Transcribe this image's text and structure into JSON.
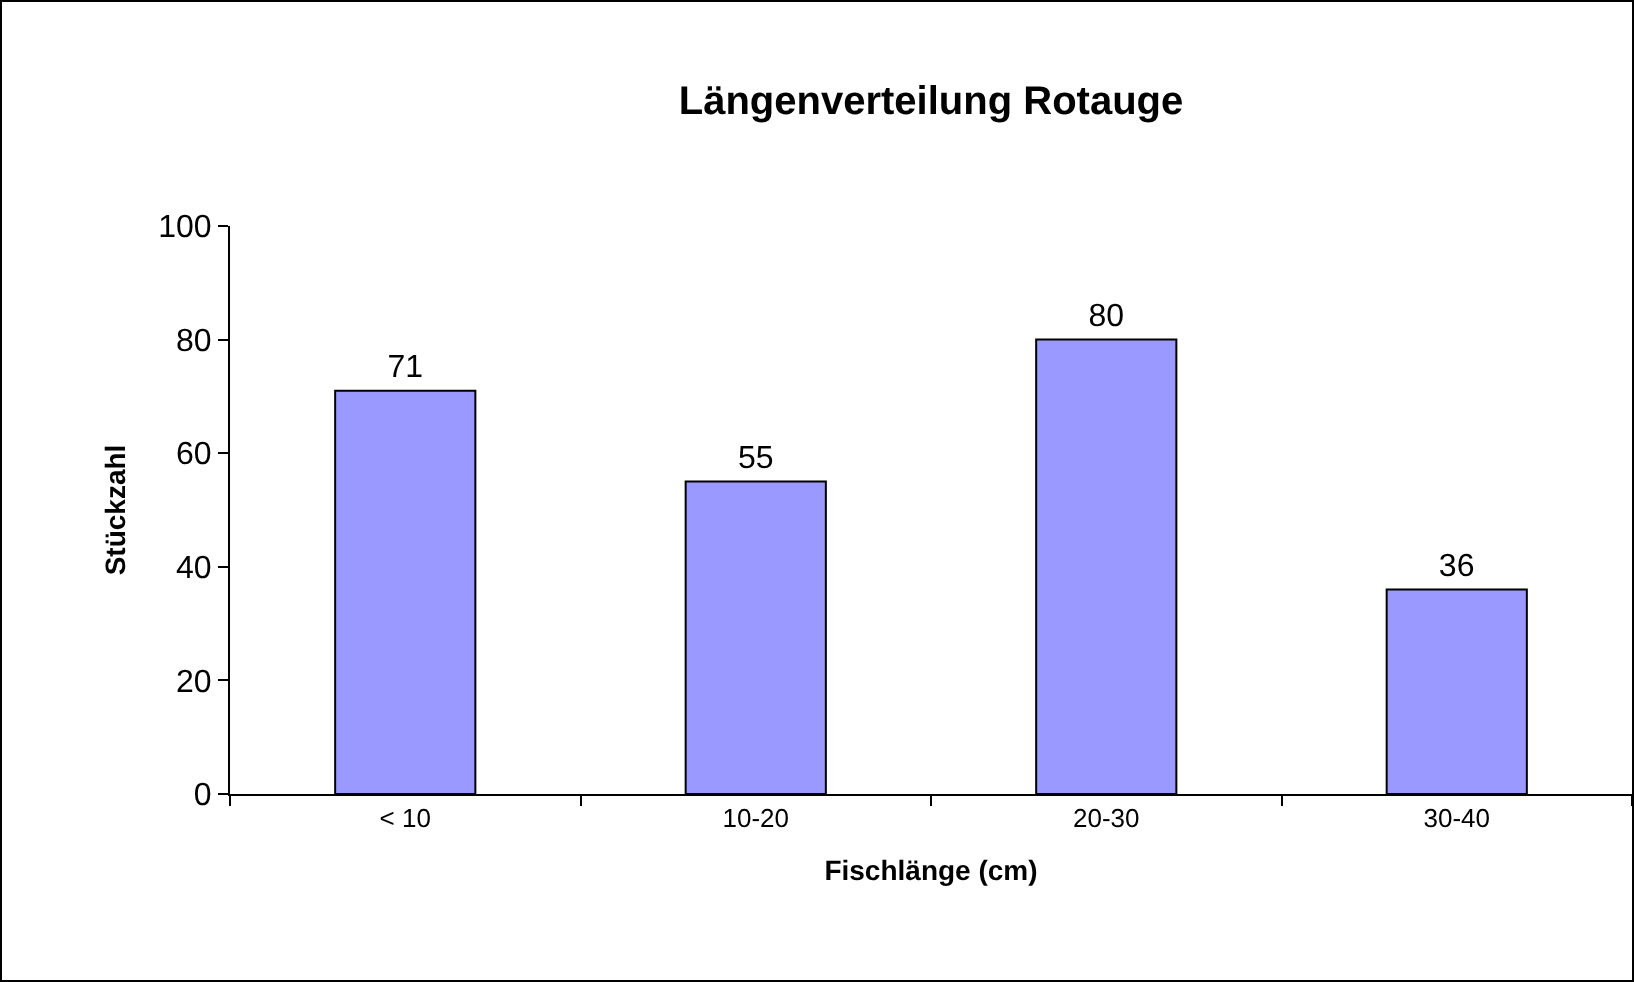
{
  "chart_data": {
    "type": "bar",
    "title": "Längenverteilung Rotauge",
    "xlabel": "Fischlänge (cm)",
    "ylabel": "Stückzahl",
    "categories": [
      "< 10",
      "10-20",
      "20-30",
      "30-40"
    ],
    "values": [
      71,
      55,
      80,
      36
    ],
    "color": "#9999ff",
    "ylim": [
      0,
      100
    ],
    "yticks": [
      0,
      20,
      40,
      60,
      80,
      100
    ],
    "grid": false,
    "data_labels": true
  }
}
